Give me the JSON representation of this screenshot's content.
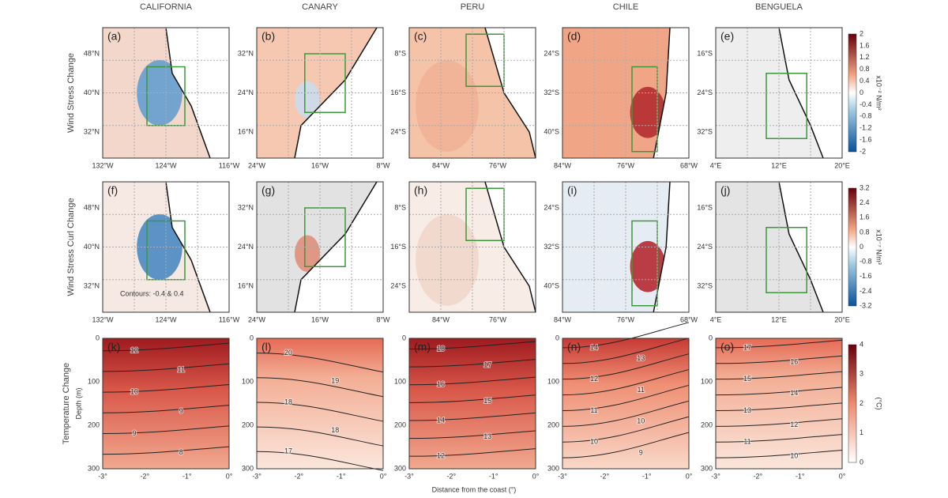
{
  "columns": [
    "CALIFORNIA",
    "CANARY",
    "PERU",
    "CHILE",
    "BENGUELA"
  ],
  "rows": [
    {
      "label": "Wind Stress Change",
      "colorbar_unit": "x10⁻² N/m²",
      "colorbar_ticks": [
        "2",
        "1.6",
        "1.2",
        "0.8",
        "0.4",
        "0",
        "-0.4",
        "-0.8",
        "-1.2",
        "-1.6",
        "-2"
      ],
      "panel_labels": [
        "(a)",
        "(b)",
        "(c)",
        "(d)",
        "(e)"
      ]
    },
    {
      "label": "Wind Stress Curl Change",
      "colorbar_unit": "x10⁻⁷ N/m³",
      "colorbar_ticks": [
        "3.2",
        "2.4",
        "1.6",
        "0.8",
        "0",
        "-0.8",
        "-1.6",
        "-2.4",
        "-3.2"
      ],
      "panel_labels": [
        "(f)",
        "(g)",
        "(h)",
        "(i)",
        "(j)"
      ]
    },
    {
      "label": "Temperature Change",
      "colorbar_unit": "(°C)",
      "colorbar_ticks": [
        "4",
        "3",
        "2",
        "1",
        "0"
      ],
      "panel_labels": [
        "(k)",
        "(l)",
        "(m)",
        "(n)",
        "(o)"
      ]
    }
  ],
  "map_axes": [
    {
      "yticks": [
        "48°N",
        "40°N",
        "32°N"
      ],
      "xticks": [
        "132°W",
        "124°W",
        "116°W"
      ]
    },
    {
      "yticks": [
        "32°N",
        "24°N",
        "16°N"
      ],
      "xticks": [
        "24°W",
        "16°W",
        "8°W"
      ]
    },
    {
      "yticks": [
        "8°S",
        "16°S",
        "24°S"
      ],
      "xticks": [
        "84°W",
        "76°W"
      ]
    },
    {
      "yticks": [
        "24°S",
        "32°S",
        "40°S"
      ],
      "xticks": [
        "84°W",
        "76°W",
        "68°W"
      ]
    },
    {
      "yticks": [
        "16°S",
        "24°S",
        "32°S"
      ],
      "xticks": [
        "4°E",
        "12°E",
        "20°E"
      ]
    }
  ],
  "contours_note": "Contours: -0.4 & 0.4",
  "section_ylabel": "Depth (m)",
  "section_yticks": [
    "0",
    "100",
    "200",
    "300"
  ],
  "section_xticks": [
    "-3°",
    "-2°",
    "-1°",
    "0°"
  ],
  "section_xlabel": "Distance from the coast (°)",
  "section_contour_labels": [
    [
      "12",
      "11",
      "10",
      "9",
      "9",
      "8"
    ],
    [
      "20",
      "19",
      "18",
      "18",
      "17"
    ],
    [
      "18",
      "17",
      "16",
      "15",
      "14",
      "13",
      "12"
    ],
    [
      "14",
      "13",
      "12",
      "11",
      "11",
      "10",
      "10",
      "9"
    ],
    [
      "17",
      "16",
      "15",
      "14",
      "13",
      "12",
      "11",
      "10"
    ]
  ]
}
